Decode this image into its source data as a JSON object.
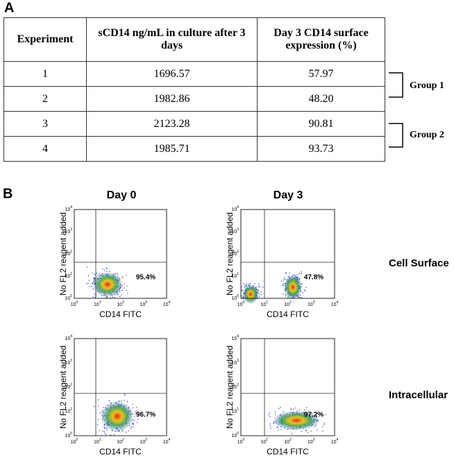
{
  "panel_a": {
    "label": "A",
    "table": {
      "headers": [
        "Experiment",
        "sCD14 ng/mL in culture after 3 days",
        "Day 3 CD14 surface expression (%)"
      ],
      "rows": [
        [
          "1",
          "1696.57",
          "57.97"
        ],
        [
          "2",
          "1982.86",
          "48.20"
        ],
        [
          "3",
          "2123.28",
          "90.81"
        ],
        [
          "4",
          "1985.71",
          "93.73"
        ]
      ]
    },
    "groups": [
      "Group 1",
      "Group 2"
    ]
  },
  "panel_b": {
    "label": "B",
    "columns": [
      "Day 0",
      "Day 3"
    ],
    "rows": [
      "Cell Surface",
      "Intracellular"
    ],
    "tick_base": "10",
    "tick_exponents": [
      "0",
      "1",
      "2",
      "3",
      "4"
    ],
    "plots": [
      {
        "y_label": "No FL2 reagent added",
        "x_label": "CD14 FITC",
        "percent": "95.4%"
      },
      {
        "y_label": "No FL2 reagent added",
        "x_label": "CD14 FITC",
        "percent": "47.8%"
      },
      {
        "y_label": "No FL2 reagent added",
        "x_label": "CD14 FITC",
        "percent": "96.7%"
      },
      {
        "y_label": "No FL2 reagent added",
        "x_label": "CD14 FITC",
        "percent": "97.2%"
      }
    ]
  }
}
